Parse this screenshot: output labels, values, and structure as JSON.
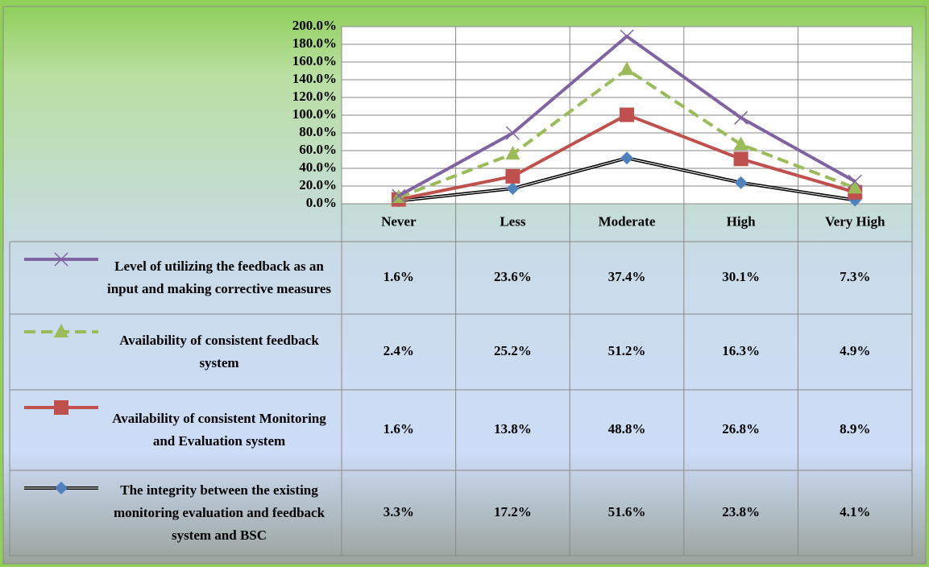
{
  "chart_data": {
    "type": "line",
    "stacked": true,
    "categories": [
      "Never",
      "Less",
      "Moderate",
      "High",
      "Very High"
    ],
    "series": [
      {
        "name": "Level of utilizing the feedback as an input and making corrective measures",
        "color": "#8064a2",
        "marker": "x",
        "dash": false,
        "values": [
          1.6,
          23.6,
          37.4,
          30.1,
          7.3
        ],
        "value_labels": [
          "1.6%",
          "23.6%",
          "37.4%",
          "30.1%",
          "7.3%"
        ]
      },
      {
        "name": "Availability of consistent feedback system",
        "color": "#9bbb59",
        "marker": "triangle",
        "dash": true,
        "values": [
          2.4,
          25.2,
          51.2,
          16.3,
          4.9
        ],
        "value_labels": [
          "2.4%",
          "25.2%",
          "51.2%",
          "16.3%",
          "4.9%"
        ]
      },
      {
        "name": "Availability of consistent Monitoring and Evaluation system",
        "color": "#c0504d",
        "marker": "square",
        "dash": false,
        "values": [
          1.6,
          13.8,
          48.8,
          26.8,
          8.9
        ],
        "value_labels": [
          "1.6%",
          "13.8%",
          "48.8%",
          "26.8%",
          "8.9%"
        ]
      },
      {
        "name": "The integrity between the existing monitoring evaluation and feedback system and BSC",
        "color": "#4f81bd",
        "line_color": "#000000",
        "marker": "diamond",
        "dash": false,
        "values": [
          3.3,
          17.2,
          51.6,
          23.8,
          4.1
        ],
        "value_labels": [
          "3.3%",
          "17.2%",
          "51.6%",
          "23.8%",
          "4.1%"
        ]
      }
    ],
    "ylim": [
      0,
      200
    ],
    "yticks": [
      {
        "value": 0,
        "label": "0.0%"
      },
      {
        "value": 20,
        "label": "20.0%"
      },
      {
        "value": 40,
        "label": "40.0%"
      },
      {
        "value": 60,
        "label": "60.0%"
      },
      {
        "value": 80,
        "label": "80.0%"
      },
      {
        "value": 100,
        "label": "100.0%"
      },
      {
        "value": 120,
        "label": "120.0%"
      },
      {
        "value": 140,
        "label": "140.0%"
      },
      {
        "value": 160,
        "label": "160.0%"
      },
      {
        "value": 180,
        "label": "180.0%"
      },
      {
        "value": 200,
        "label": "200.0%"
      }
    ],
    "grid": true
  }
}
